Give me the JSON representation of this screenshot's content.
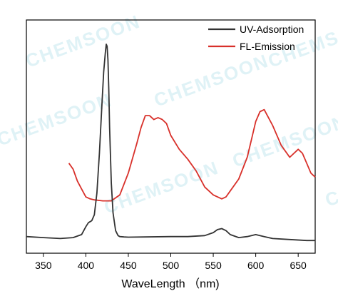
{
  "watermark": "CHEMSOON",
  "chart_data": {
    "type": "line",
    "xlabel": "WaveLength （nm)",
    "ylabel": "",
    "xlim": [
      330,
      670
    ],
    "xticks": [
      350,
      400,
      450,
      500,
      550,
      600,
      650
    ],
    "yticks_shown": false,
    "legend_position": "top-right",
    "series": [
      {
        "name": "UV-Adsorption",
        "color": "#333333",
        "x": [
          330,
          350,
          370,
          385,
          395,
          400,
          403,
          407,
          410,
          413,
          416,
          419,
          421,
          423,
          424,
          425,
          426,
          427,
          428,
          430,
          432,
          435,
          438,
          440,
          445,
          450,
          470,
          500,
          520,
          540,
          550,
          555,
          560,
          565,
          570,
          580,
          590,
          600,
          610,
          620,
          640,
          660,
          670
        ],
        "y": [
          0.03,
          0.025,
          0.02,
          0.025,
          0.04,
          0.08,
          0.1,
          0.11,
          0.14,
          0.25,
          0.45,
          0.7,
          0.86,
          0.96,
          1.0,
          0.99,
          0.92,
          0.78,
          0.58,
          0.3,
          0.15,
          0.06,
          0.035,
          0.03,
          0.028,
          0.027,
          0.028,
          0.03,
          0.03,
          0.035,
          0.05,
          0.065,
          0.07,
          0.06,
          0.04,
          0.025,
          0.03,
          0.04,
          0.03,
          0.02,
          0.015,
          0.01,
          0.01
        ]
      },
      {
        "name": "FL-Emission",
        "color": "#d8302a",
        "x": [
          380,
          385,
          390,
          395,
          400,
          405,
          410,
          420,
          430,
          440,
          450,
          460,
          465,
          470,
          475,
          480,
          485,
          490,
          495,
          500,
          510,
          520,
          530,
          540,
          550,
          560,
          565,
          570,
          580,
          590,
          595,
          600,
          605,
          610,
          615,
          620,
          630,
          640,
          650,
          655,
          660,
          665,
          670
        ],
        "y": [
          0.4,
          0.37,
          0.31,
          0.27,
          0.23,
          0.22,
          0.215,
          0.21,
          0.21,
          0.24,
          0.35,
          0.5,
          0.58,
          0.64,
          0.64,
          0.62,
          0.63,
          0.62,
          0.6,
          0.54,
          0.47,
          0.42,
          0.36,
          0.28,
          0.24,
          0.22,
          0.23,
          0.26,
          0.32,
          0.43,
          0.52,
          0.61,
          0.66,
          0.67,
          0.63,
          0.59,
          0.49,
          0.43,
          0.47,
          0.45,
          0.4,
          0.35,
          0.33
        ]
      }
    ]
  }
}
